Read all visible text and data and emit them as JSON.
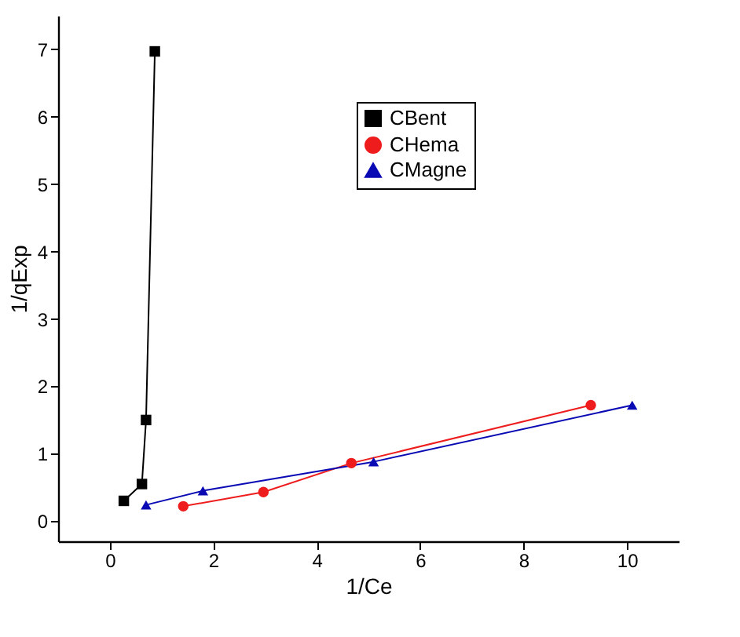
{
  "chart_data": {
    "type": "line",
    "xlabel": "1/Ce",
    "ylabel": "1/qExp",
    "xlim": [
      -1,
      11
    ],
    "ylim": [
      -0.3,
      7.5
    ],
    "xticks": [
      0,
      2,
      4,
      6,
      8,
      10
    ],
    "yticks": [
      0,
      1,
      2,
      3,
      4,
      5,
      6,
      7
    ],
    "legend": "top right",
    "grid": false,
    "series": [
      {
        "name": "CBent",
        "color": "#000000",
        "marker": "square",
        "x": [
          0.27,
          0.62,
          0.7,
          0.87
        ],
        "values": [
          0.3,
          0.55,
          1.5,
          6.97
        ]
      },
      {
        "name": "CHema",
        "color": "#ee1c1c",
        "marker": "circle",
        "x": [
          1.42,
          2.97,
          4.67,
          9.3
        ],
        "values": [
          0.22,
          0.43,
          0.86,
          1.72
        ]
      },
      {
        "name": "CMagne",
        "color": "#0a0ab4",
        "marker": "triangle",
        "x": [
          0.7,
          1.8,
          5.1,
          10.1
        ],
        "values": [
          0.24,
          0.45,
          0.88,
          1.72
        ]
      }
    ]
  }
}
